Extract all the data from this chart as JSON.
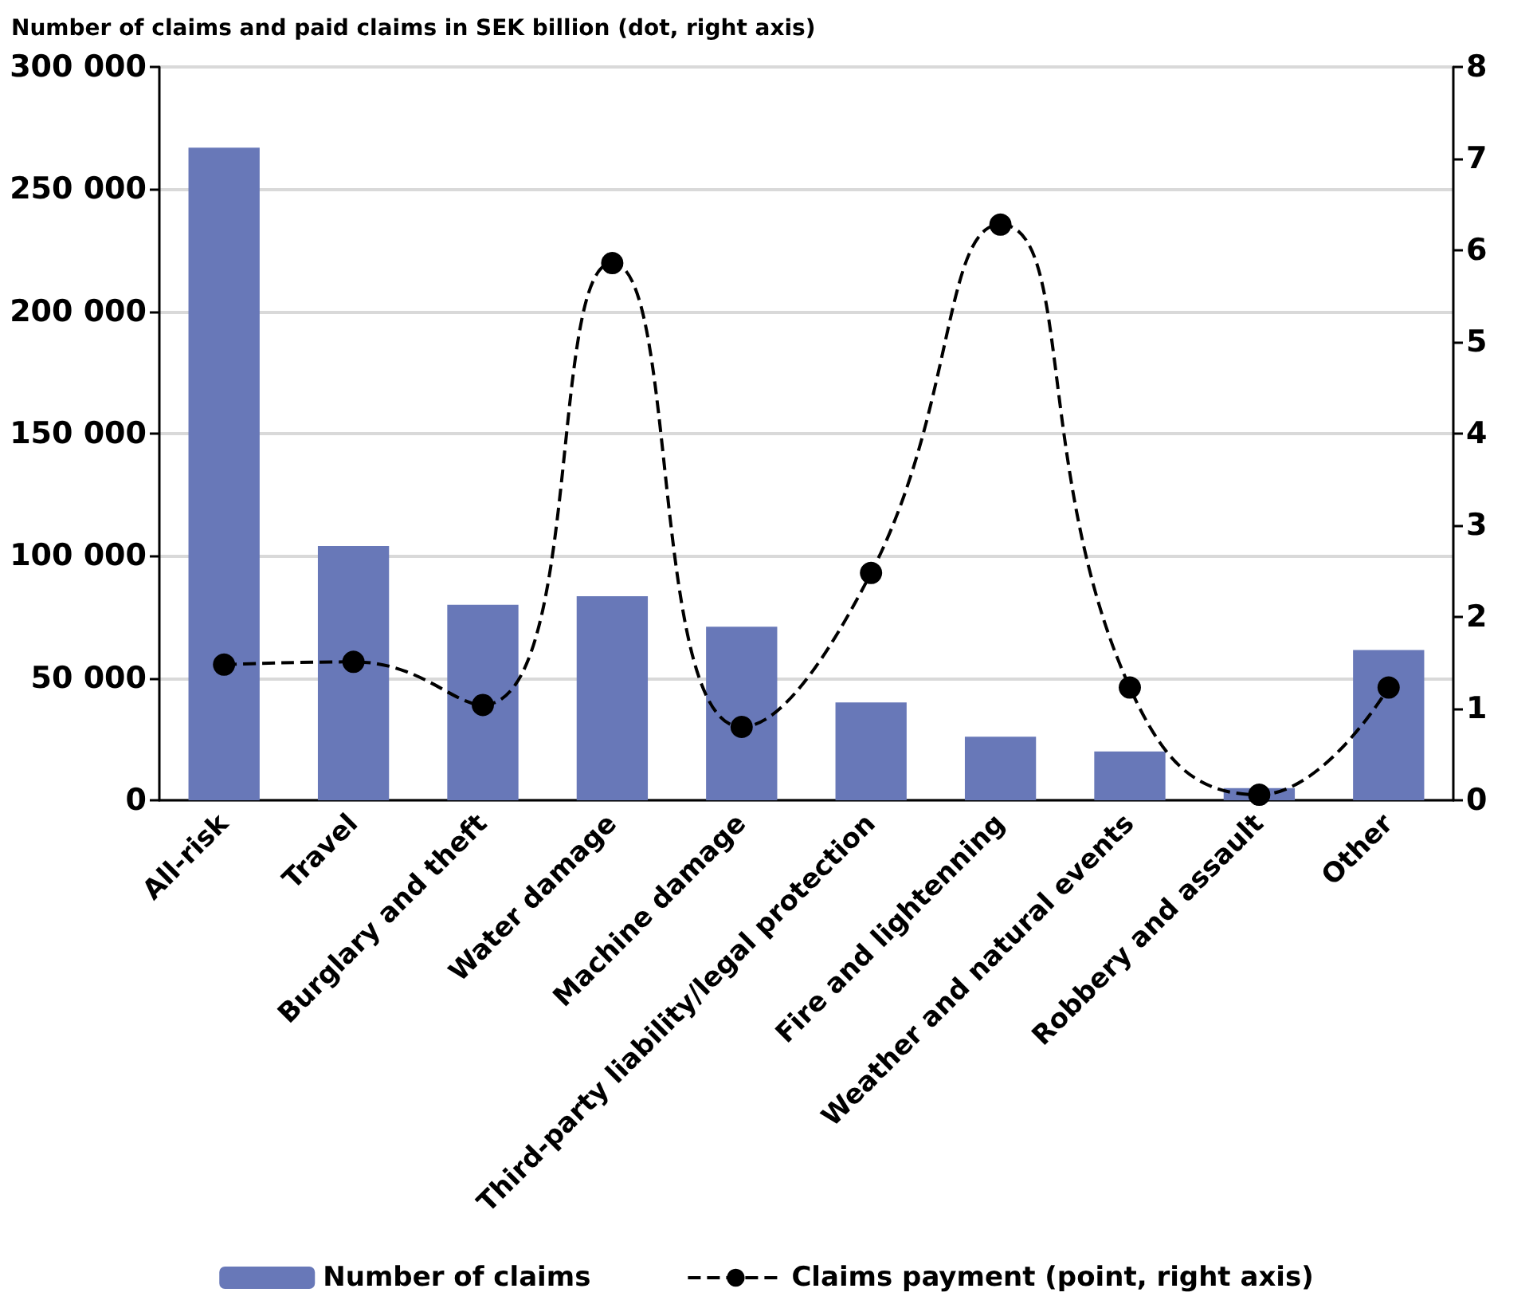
{
  "chart_data": {
    "type": "bar",
    "title": "Number of claims and paid claims in SEK billion (dot, right axis)",
    "categories": [
      "All-risk",
      "Travel",
      "Burglary and theft",
      "Water damage",
      "Machine damage",
      "Third-party liability/legal protection",
      "Fire and lightenning",
      "Weather and natural events",
      "Robbery and assault",
      "Other"
    ],
    "series": [
      {
        "name": "Number of claims",
        "color": "#6878b8",
        "values": [
          267000,
          104000,
          80000,
          83500,
          71000,
          40000,
          26000,
          20000,
          5000,
          61500
        ]
      },
      {
        "name": "Claims payment (point, right axis)",
        "type": "line",
        "axis": "y2",
        "color": "#000000",
        "marker": "circle",
        "line_style": "dashed",
        "values": [
          1.48,
          1.51,
          1.04,
          5.86,
          0.8,
          2.48,
          6.28,
          1.23,
          0.06,
          1.23
        ]
      }
    ],
    "ylim": [
      0,
      300000
    ],
    "yticks": [
      {
        "value": 0,
        "label": "0"
      },
      {
        "value": 50000,
        "label": "50 000"
      },
      {
        "value": 100000,
        "label": "100 000"
      },
      {
        "value": 150000,
        "label": "150 000"
      },
      {
        "value": 200000,
        "label": "200 000"
      },
      {
        "value": 250000,
        "label": "250 000"
      },
      {
        "value": 300000,
        "label": "300 000"
      }
    ],
    "y2lim": [
      0,
      8
    ],
    "y2ticks": [
      0,
      1,
      2,
      3,
      4,
      5,
      6,
      7,
      8
    ],
    "grid": "y",
    "legend": "bottom"
  }
}
